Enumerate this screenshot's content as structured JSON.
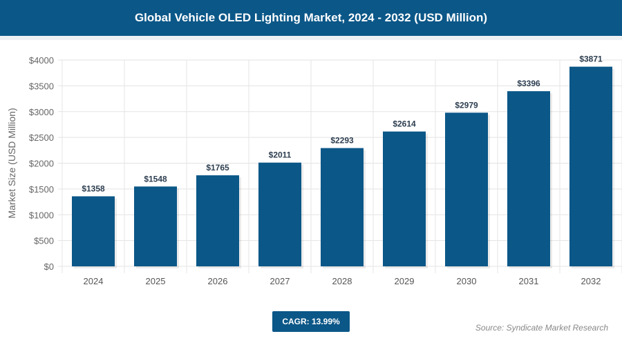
{
  "chart_data": {
    "type": "bar",
    "title": "Global Vehicle OLED Lighting Market, 2024 - 2032 (USD Million)",
    "xlabel": "",
    "ylabel": "Market Size (USD Million)",
    "categories": [
      "2024",
      "2025",
      "2026",
      "2027",
      "2028",
      "2029",
      "2030",
      "2031",
      "2032"
    ],
    "values": [
      1358,
      1548,
      1765,
      2011,
      2293,
      2614,
      2979,
      3396,
      3871
    ],
    "data_labels": [
      "$1358",
      "$1548",
      "$1765",
      "$2011",
      "$2293",
      "$2614",
      "$2979",
      "$3396",
      "$3871"
    ],
    "ylim": [
      0,
      4000
    ],
    "yticks": [
      0,
      500,
      1000,
      1500,
      2000,
      2500,
      3000,
      3500,
      4000
    ],
    "ytick_labels": [
      "$0",
      "$500",
      "$1000",
      "$1500",
      "$2000",
      "$2500",
      "$3000",
      "$3500",
      "$4000"
    ],
    "grid": true,
    "bar_color": "#0b5788"
  },
  "cagr": "CAGR: 13.99%",
  "source": "Source: Syndicate Market Research"
}
